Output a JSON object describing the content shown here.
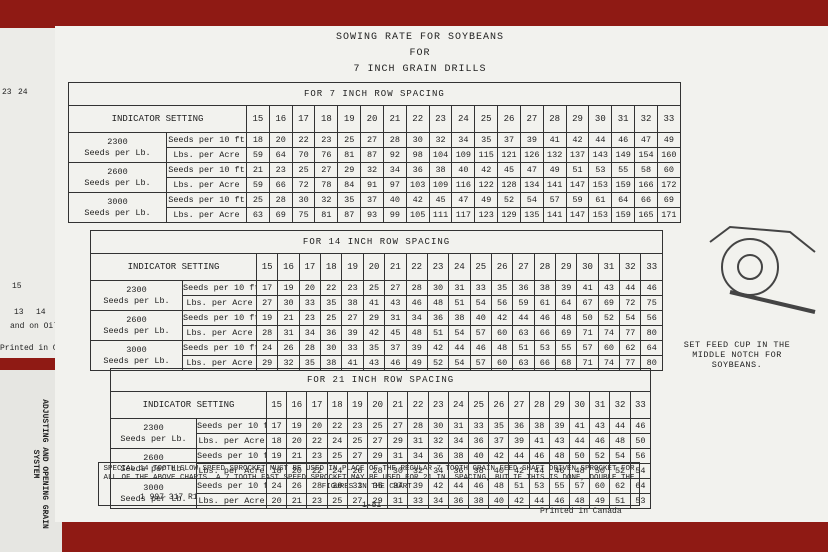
{
  "header": {
    "title_lines": [
      "SOWING RATE FOR SOYBEANS",
      "FOR",
      "7 INCH GRAIN DRILLS"
    ]
  },
  "tables": [
    {
      "title": "FOR 7 INCH ROW SPACING",
      "setting_label": "INDICATOR SETTING",
      "settings": [
        15,
        16,
        17,
        18,
        19,
        20,
        21,
        22,
        23,
        24,
        25,
        26,
        27,
        28,
        29,
        30,
        31,
        32,
        33
      ],
      "groups": [
        {
          "seeds": 2300,
          "unit": "Seeds per Lb.",
          "rows": [
            {
              "label": "Seeds per 10 ft",
              "values": [
                18,
                20,
                22,
                23,
                25,
                27,
                28,
                30,
                32,
                34,
                35,
                37,
                39,
                41,
                42,
                44,
                46,
                47,
                49
              ]
            },
            {
              "label": "Lbs. per Acre",
              "values": [
                59,
                64,
                70,
                76,
                81,
                87,
                92,
                98,
                104,
                109,
                115,
                121,
                126,
                132,
                137,
                143,
                149,
                154,
                160
              ]
            }
          ]
        },
        {
          "seeds": 2600,
          "unit": "Seeds per Lb.",
          "rows": [
            {
              "label": "Seeds per 10 ft",
              "values": [
                21,
                23,
                25,
                27,
                29,
                32,
                34,
                36,
                38,
                40,
                42,
                45,
                47,
                49,
                51,
                53,
                55,
                58,
                60
              ]
            },
            {
              "label": "Lbs. per Acre",
              "values": [
                59,
                66,
                72,
                78,
                84,
                91,
                97,
                103,
                109,
                116,
                122,
                128,
                134,
                141,
                147,
                153,
                159,
                166,
                172
              ]
            }
          ]
        },
        {
          "seeds": 3000,
          "unit": "Seeds per Lb.",
          "rows": [
            {
              "label": "Seeds per 10 ft",
              "values": [
                25,
                28,
                30,
                32,
                35,
                37,
                40,
                42,
                45,
                47,
                49,
                52,
                54,
                57,
                59,
                61,
                64,
                66,
                69
              ]
            },
            {
              "label": "Lbs. per Acre",
              "values": [
                63,
                69,
                75,
                81,
                87,
                93,
                99,
                105,
                111,
                117,
                123,
                129,
                135,
                141,
                147,
                153,
                159,
                165,
                171
              ]
            }
          ]
        }
      ]
    },
    {
      "title": "FOR 14 INCH ROW SPACING",
      "setting_label": "INDICATOR SETTING",
      "settings": [
        15,
        16,
        17,
        18,
        19,
        20,
        21,
        22,
        23,
        24,
        25,
        26,
        27,
        28,
        29,
        30,
        31,
        32,
        33
      ],
      "groups": [
        {
          "seeds": 2300,
          "unit": "Seeds per Lb.",
          "rows": [
            {
              "label": "Seeds per 10 ft",
              "values": [
                17,
                19,
                20,
                22,
                23,
                25,
                27,
                28,
                30,
                31,
                33,
                35,
                36,
                38,
                39,
                41,
                43,
                44,
                46
              ]
            },
            {
              "label": "Lbs. per Acre",
              "values": [
                27,
                30,
                33,
                35,
                38,
                41,
                43,
                46,
                48,
                51,
                54,
                56,
                59,
                61,
                64,
                67,
                69,
                72,
                75
              ]
            }
          ]
        },
        {
          "seeds": 2600,
          "unit": "Seeds per Lb.",
          "rows": [
            {
              "label": "Seeds per 10 ft",
              "values": [
                19,
                21,
                23,
                25,
                27,
                29,
                31,
                34,
                36,
                38,
                40,
                42,
                44,
                46,
                48,
                50,
                52,
                54,
                56
              ]
            },
            {
              "label": "Lbs. per Acre",
              "values": [
                28,
                31,
                34,
                36,
                39,
                42,
                45,
                48,
                51,
                54,
                57,
                60,
                63,
                66,
                69,
                71,
                74,
                77,
                80
              ]
            }
          ]
        },
        {
          "seeds": 3000,
          "unit": "Seeds per Lb.",
          "rows": [
            {
              "label": "Seeds per 10 ft",
              "values": [
                24,
                26,
                28,
                30,
                33,
                35,
                37,
                39,
                42,
                44,
                46,
                48,
                51,
                53,
                55,
                57,
                60,
                62,
                64
              ]
            },
            {
              "label": "Lbs. per Acre",
              "values": [
                29,
                32,
                35,
                38,
                41,
                43,
                46,
                49,
                52,
                54,
                57,
                60,
                63,
                66,
                68,
                71,
                74,
                77,
                80
              ]
            }
          ]
        }
      ]
    },
    {
      "title": "FOR 21 INCH ROW SPACING",
      "setting_label": "INDICATOR SETTING",
      "settings": [
        15,
        16,
        17,
        18,
        19,
        20,
        21,
        22,
        23,
        24,
        25,
        26,
        27,
        28,
        29,
        30,
        31,
        32,
        33
      ],
      "groups": [
        {
          "seeds": 2300,
          "unit": "Seeds per Lb.",
          "rows": [
            {
              "label": "Seeds per 10 ft",
              "values": [
                17,
                19,
                20,
                22,
                23,
                25,
                27,
                28,
                30,
                31,
                33,
                35,
                36,
                38,
                39,
                41,
                43,
                44,
                46
              ]
            },
            {
              "label": "Lbs. per Acre",
              "values": [
                18,
                20,
                22,
                24,
                25,
                27,
                29,
                31,
                32,
                34,
                36,
                37,
                39,
                41,
                43,
                44,
                46,
                48,
                50
              ]
            }
          ]
        },
        {
          "seeds": 2600,
          "unit": "Seeds per Lb.",
          "rows": [
            {
              "label": "Seeds per 10 ft",
              "values": [
                19,
                21,
                23,
                25,
                27,
                29,
                31,
                34,
                36,
                38,
                40,
                42,
                44,
                46,
                48,
                50,
                52,
                54,
                56
              ]
            },
            {
              "label": "Lbs. per Acre",
              "values": [
                18,
                20,
                22,
                24,
                26,
                28,
                30,
                32,
                34,
                36,
                38,
                40,
                42,
                44,
                46,
                48,
                50,
                52,
                54
              ]
            }
          ]
        },
        {
          "seeds": 3000,
          "unit": "Seeds per Lb.",
          "rows": [
            {
              "label": "Seeds per 10 ft",
              "values": [
                24,
                26,
                28,
                30,
                33,
                35,
                37,
                39,
                42,
                44,
                46,
                48,
                51,
                53,
                55,
                57,
                60,
                62,
                64
              ]
            },
            {
              "label": "Lbs. per Acre",
              "values": [
                20,
                21,
                23,
                25,
                27,
                29,
                31,
                33,
                34,
                36,
                38,
                40,
                42,
                44,
                46,
                48,
                49,
                51,
                53
              ]
            }
          ]
        }
      ]
    }
  ],
  "footnote": "SPECIAL 14 TOOTH SLOW SPEED SPROCKET MUST BE USED IN PLACE OF THE REGULAR 7 TOOTH GRAIN FEED SHAFT DRIVEN SPROCKET FOR ALL OF THE ABOVE CHARTS. A 7 TOOTH FAST SPEED SPROCKET MAY BE USED FOR 21 IN. SPACING, BUT IF THIS IS DONE, DOUBLE THE FIGURES IN THE CHART.",
  "part_number": "1 997 317 R1",
  "date": "1-81",
  "printed": "Printed in Canada",
  "side_note": "SET FEED CUP IN THE MIDDLE NOTCH FOR SOYBEANS.",
  "left_panel": {
    "top_numbers": [
      "23",
      "24"
    ],
    "row_number": "15",
    "bottom_numbers": [
      "13",
      "14",
      "15"
    ],
    "note": "and on Oil-",
    "printed": "Printed in Canada",
    "vertical": "ADJUSTING AND OPENING GRAIN SYSTEM"
  }
}
